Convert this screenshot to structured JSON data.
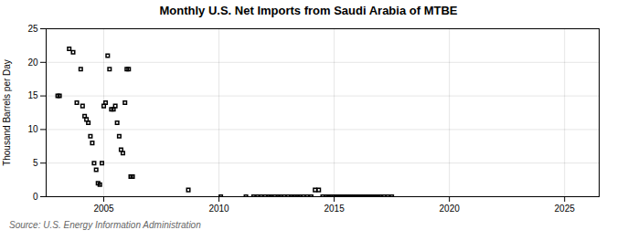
{
  "chart_data": {
    "type": "scatter",
    "title": "Monthly U.S. Net Imports from Saudi Arabia of MTBE",
    "ylabel": "Thousand Barrels per Day",
    "source": "Source: U.S. Energy Information Administration",
    "marker": "square",
    "grid": true,
    "xlim": [
      2002.5,
      2026.5
    ],
    "ylim": [
      0,
      25
    ],
    "xticks": [
      2005,
      2010,
      2015,
      2020,
      2025
    ],
    "yticks": [
      0,
      5,
      10,
      15,
      20,
      25
    ],
    "x": [
      2003.0,
      2003.08,
      2003.5,
      2003.67,
      2003.83,
      2004.0,
      2004.08,
      2004.17,
      2004.25,
      2004.33,
      2004.42,
      2004.5,
      2004.58,
      2004.67,
      2004.75,
      2004.83,
      2004.92,
      2005.0,
      2005.08,
      2005.17,
      2005.25,
      2005.33,
      2005.42,
      2005.5,
      2005.58,
      2005.67,
      2005.75,
      2005.83,
      2005.92,
      2006.0,
      2006.08,
      2006.17,
      2006.25,
      2008.67,
      2010.08,
      2011.17,
      2011.5,
      2011.67,
      2011.83,
      2012.0,
      2012.17,
      2012.25,
      2012.42,
      2012.58,
      2012.67,
      2012.83,
      2013.0,
      2013.17,
      2013.25,
      2013.42,
      2013.5,
      2013.67,
      2013.83,
      2014.0,
      2014.17,
      2014.33,
      2014.5,
      2014.67,
      2014.75,
      2014.83,
      2015.0,
      2015.08,
      2015.17,
      2015.25,
      2015.33,
      2015.42,
      2015.5,
      2015.58,
      2015.67,
      2015.75,
      2015.83,
      2015.92,
      2016.0,
      2016.08,
      2016.17,
      2016.25,
      2016.33,
      2016.42,
      2016.5,
      2016.58,
      2016.67,
      2016.75,
      2016.83,
      2016.92,
      2017.0,
      2017.17,
      2017.33,
      2017.5
    ],
    "values": [
      15.0,
      15.0,
      22.0,
      21.5,
      14.0,
      19.0,
      13.5,
      12.0,
      11.5,
      11.0,
      9.0,
      8.0,
      5.0,
      4.0,
      2.0,
      1.8,
      5.0,
      13.5,
      14.0,
      21.0,
      19.0,
      13.0,
      13.0,
      13.5,
      11.0,
      9.0,
      7.0,
      6.5,
      14.0,
      19.0,
      19.0,
      3.0,
      3.0,
      1.0,
      0.0,
      0.0,
      0.0,
      0.0,
      0.0,
      0.0,
      0.0,
      0.0,
      0.0,
      0.0,
      0.0,
      0.0,
      0.0,
      0.0,
      0.0,
      0.0,
      0.0,
      0.0,
      0.0,
      0.0,
      1.0,
      1.0,
      0.0,
      0.0,
      0.0,
      0.0,
      0.0,
      0.0,
      0.0,
      0.0,
      0.0,
      0.0,
      0.0,
      0.0,
      0.0,
      0.0,
      0.0,
      0.0,
      0.0,
      0.0,
      0.0,
      0.0,
      0.0,
      0.0,
      0.0,
      0.0,
      0.0,
      0.0,
      0.0,
      0.0,
      0.0,
      0.0,
      0.0,
      0.0
    ]
  }
}
